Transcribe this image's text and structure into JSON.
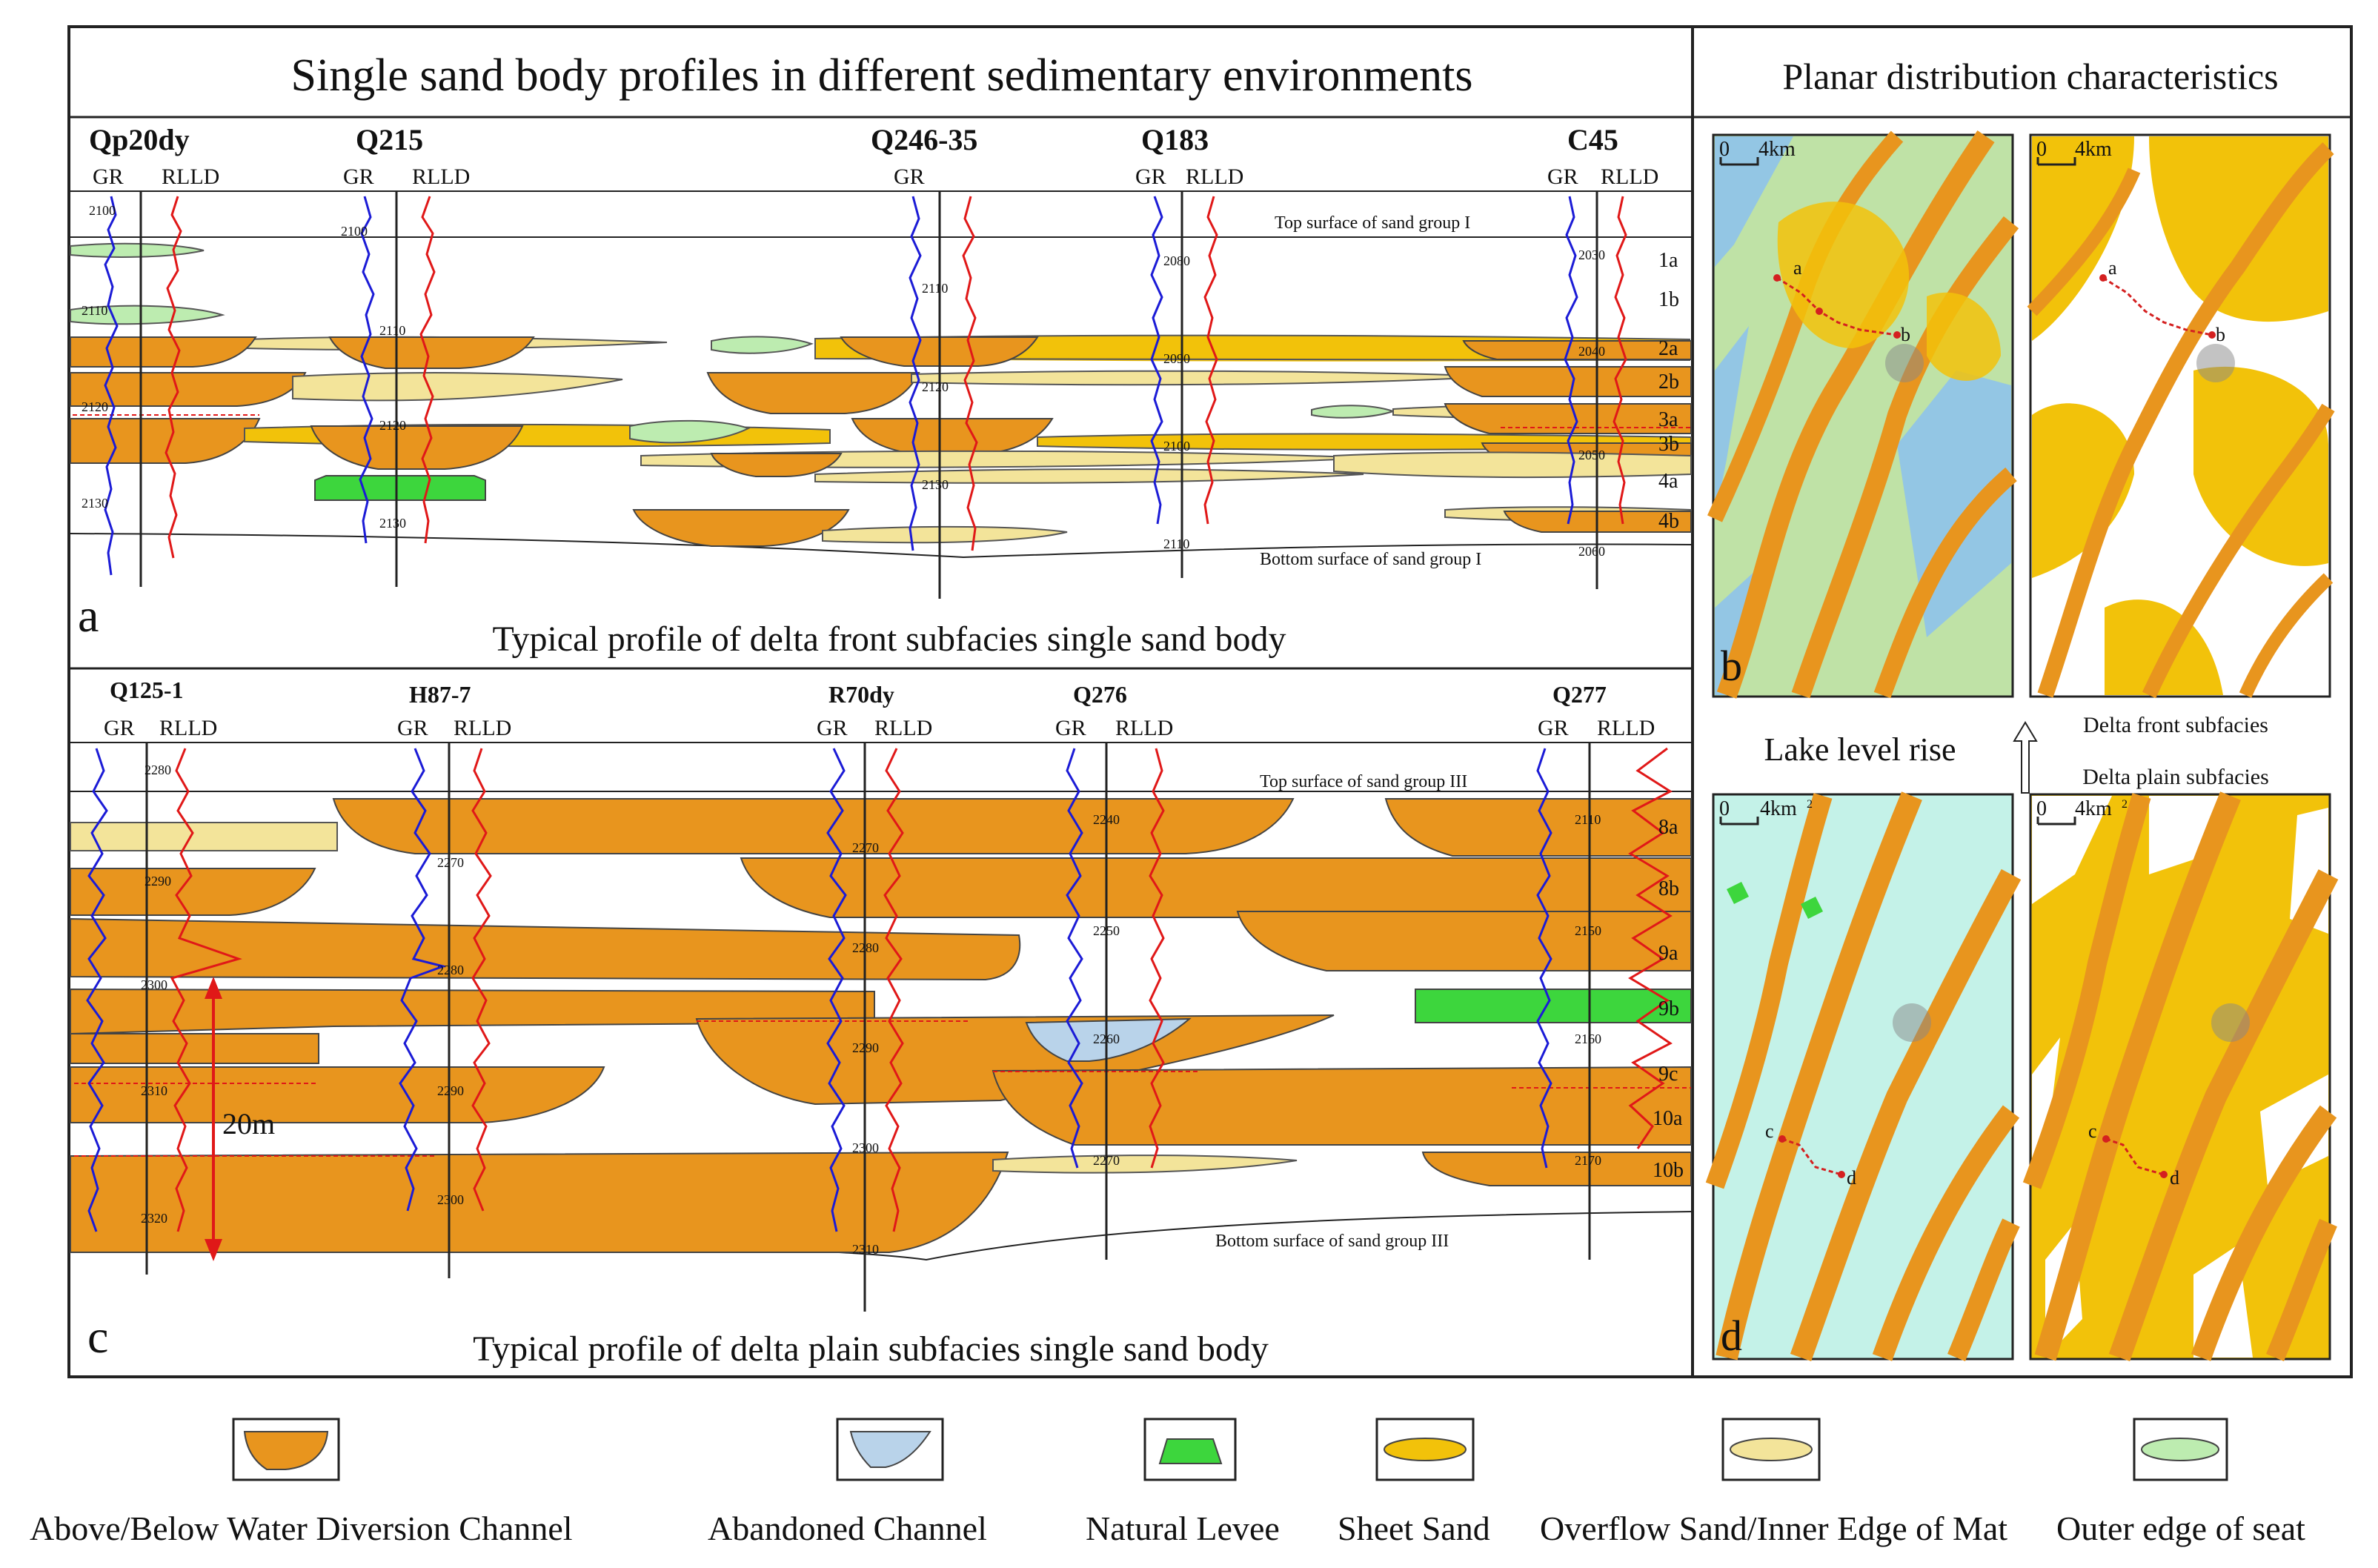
{
  "main_title": "Single sand body profiles in different sedimentary environments",
  "right_title": "Planar distribution characteristics",
  "panel_a": {
    "letter": "a",
    "caption": "Typical profile of delta front subfacies single sand body",
    "wells": [
      "Qp20dy",
      "Q215",
      "Q246-35",
      "Q183",
      "C45"
    ],
    "top_surface": "Top surface of sand group I",
    "bottom_surface": "Bottom surface of sand group I",
    "layers": [
      "1a",
      "1b",
      "2a",
      "2b",
      "3a",
      "3b",
      "4a",
      "4b"
    ],
    "depths": [
      "2100",
      "2110",
      "2120",
      "2130",
      "2100",
      "2110",
      "2120",
      "2130",
      "2140",
      "2110",
      "2120",
      "2130",
      "2140",
      "2080",
      "2090",
      "2100",
      "2110",
      "2030",
      "2040",
      "2050",
      "2060"
    ]
  },
  "panel_c": {
    "letter": "c",
    "caption": "Typical profile of delta plain subfacies single sand body",
    "wells": [
      "Q125-1",
      "H87-7",
      "R70dy",
      "Q276",
      "Q277"
    ],
    "top_surface": "Top surface of sand group III",
    "bottom_surface": "Bottom surface of sand group III",
    "layers": [
      "8a",
      "8b",
      "9a",
      "9b",
      "9c",
      "10a",
      "10b"
    ],
    "depths": [
      "2280",
      "2290",
      "2300",
      "2310",
      "2320",
      "2270",
      "2280",
      "2290",
      "2300",
      "2270",
      "2280",
      "2290",
      "2300",
      "2310",
      "2240",
      "2250",
      "2260",
      "2270",
      "2110",
      "2150",
      "2160",
      "2170"
    ],
    "scale_label": "20m"
  },
  "log_labels": {
    "gr": "GR",
    "rlld": "RLLD"
  },
  "maps": {
    "b_letter": "b",
    "d_letter": "d",
    "scale": "4km",
    "scale_zero": "0",
    "scale_sup": "2",
    "point_labels": [
      "a",
      "b",
      "c",
      "d"
    ],
    "delta_front": "Delta front subfacies",
    "delta_plain": "Delta plain subfacies",
    "lake_level": "Lake level rise"
  },
  "legend": [
    {
      "label": "Above/Below Water Diversion Channel",
      "color": "#E8951E"
    },
    {
      "label": "Abandoned Channel",
      "color": "#B9D3EA"
    },
    {
      "label": "Natural Levee",
      "color": "#3DD63D"
    },
    {
      "label": "Sheet Sand",
      "color": "#F2C20A"
    },
    {
      "label": "Overflow Sand/Inner Edge of Mat",
      "color": "#F3E49A"
    },
    {
      "label": "Outer edge of seat",
      "color": "#BDECB0"
    }
  ],
  "colors": {
    "channel": "#E8951E",
    "abandoned": "#B9D3EA",
    "levee": "#3DD63D",
    "sheet": "#F2C20A",
    "overflow": "#F3E49A",
    "outer": "#BDECB0",
    "gr_curve": "#1B1BD6",
    "rlld_curve": "#E01818"
  }
}
